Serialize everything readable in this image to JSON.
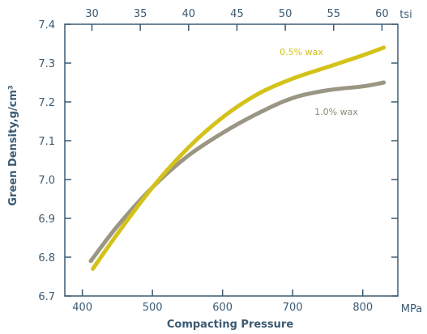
{
  "chart_data": {
    "type": "line",
    "xlabel": "Compacting Pressure",
    "ylabel": "Green Density,g/cm³",
    "x_unit": "MPa",
    "x2_unit": "tsi",
    "xlim": [
      375,
      850
    ],
    "ylim": [
      6.7,
      7.4
    ],
    "x_ticks": [
      400,
      500,
      600,
      700,
      800
    ],
    "x_tick_labels": [
      "400",
      "500",
      "600",
      "700",
      "800"
    ],
    "x2_ticks": [
      30,
      35,
      40,
      45,
      50,
      55,
      60
    ],
    "x2_tick_labels": [
      "30",
      "35",
      "40",
      "45",
      "50",
      "55",
      "60"
    ],
    "y_ticks": [
      6.7,
      6.8,
      6.9,
      7.0,
      7.1,
      7.2,
      7.3,
      7.4
    ],
    "y_tick_labels": [
      "6.7",
      "6.8",
      "6.9",
      "7.0",
      "7.1",
      "7.2",
      "7.3",
      "7.4"
    ],
    "grid": false,
    "series": [
      {
        "name": "0.5% wax",
        "color": "#d4c21a",
        "x": [
          415,
          450,
          500,
          550,
          600,
          650,
          700,
          750,
          800,
          830
        ],
        "y": [
          6.77,
          6.86,
          6.98,
          7.08,
          7.16,
          7.22,
          7.26,
          7.29,
          7.32,
          7.34
        ]
      },
      {
        "name": "1.0% wax",
        "color": "#9a9683",
        "x": [
          412,
          450,
          500,
          550,
          600,
          650,
          700,
          750,
          800,
          830
        ],
        "y": [
          6.79,
          6.88,
          6.98,
          7.06,
          7.12,
          7.17,
          7.21,
          7.23,
          7.24,
          7.25
        ]
      }
    ]
  }
}
